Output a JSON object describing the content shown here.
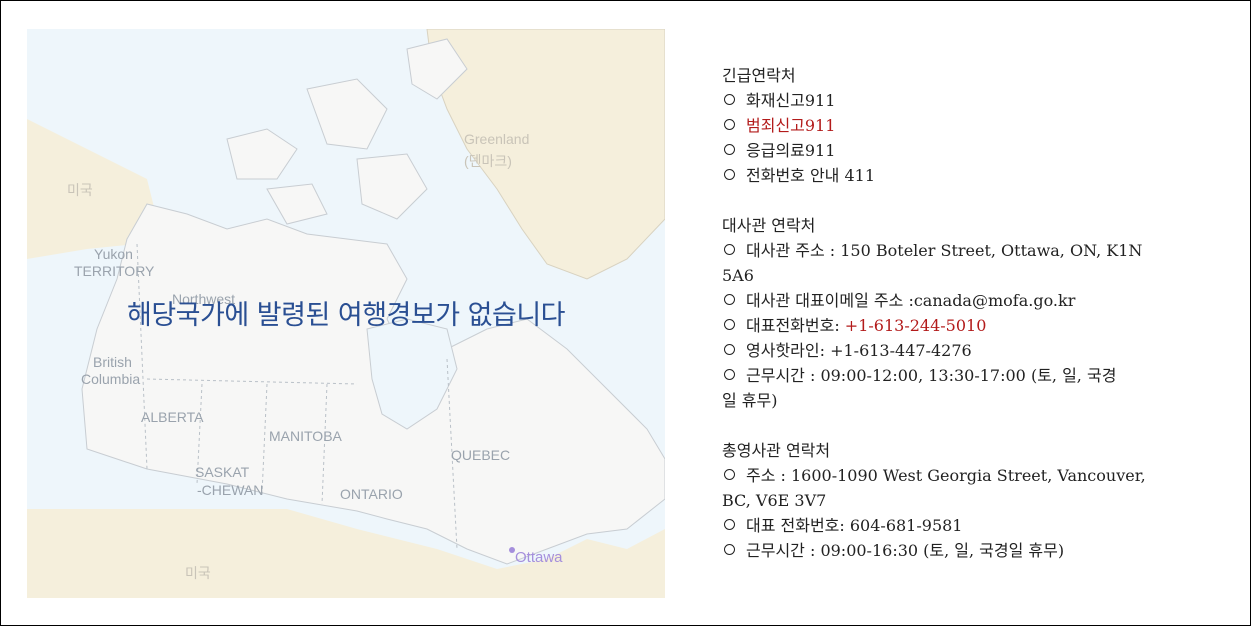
{
  "map": {
    "overlay_message": "해당국가에 발령된 여행경보가 없습니다",
    "labels": {
      "greenland": "Greenland",
      "greenland_ko": "(덴마크)",
      "usa_top": "미국",
      "yukon": "Yukon",
      "yukon_territory": "TERRITORY",
      "northwest": "Northwest",
      "british": "British",
      "columbia": "Columbia",
      "alberta": "ALBERTA",
      "manitoba": "MANITOBA",
      "saskat": "SASKAT",
      "chewan": "-CHEWAN",
      "ontario": "ONTARIO",
      "quebec": "QUEBEC",
      "ottawa": "Ottawa",
      "usa_bottom": "미국"
    },
    "colors": {
      "land": "#f7f7f6",
      "neighbor": "#f5efdc",
      "water": "#eef6fb",
      "border": "#b9c0c7"
    }
  },
  "contacts": {
    "emergency": {
      "title": "긴급연락처",
      "items": [
        {
          "text": "화재신고911"
        },
        {
          "text": "범죄신고911"
        },
        {
          "text": "응급의료911"
        },
        {
          "text": "전화번호 안내 411"
        }
      ]
    },
    "embassy": {
      "title": "대사관 연락처",
      "address_label": "대사관 주소 : 150 Boteler Street, Ottawa, ON, K1N",
      "address_cont": "5A6",
      "email": "대사관 대표이메일 주소 :canada@mofa.go.kr",
      "phone_label": "대표전화번호: ",
      "phone_number": "+1-613-244-5010",
      "hotline": "영사핫라인: +1-613-447-4276",
      "hours": "근무시간 : 09:00-12:00, 13:30-17:00 (토, 일, 국경",
      "hours_cont": "일 휴무)"
    },
    "consulate": {
      "title": "총영사관 연락처",
      "address": "주소 : 1600-1090 West Georgia Street, Vancouver,",
      "address_cont": "BC, V6E 3V7",
      "phone": "대표 전화번호: 604-681-9581",
      "hours": "근무시간 : 09:00-16:30 (토, 일, 국경일 휴무)"
    }
  }
}
